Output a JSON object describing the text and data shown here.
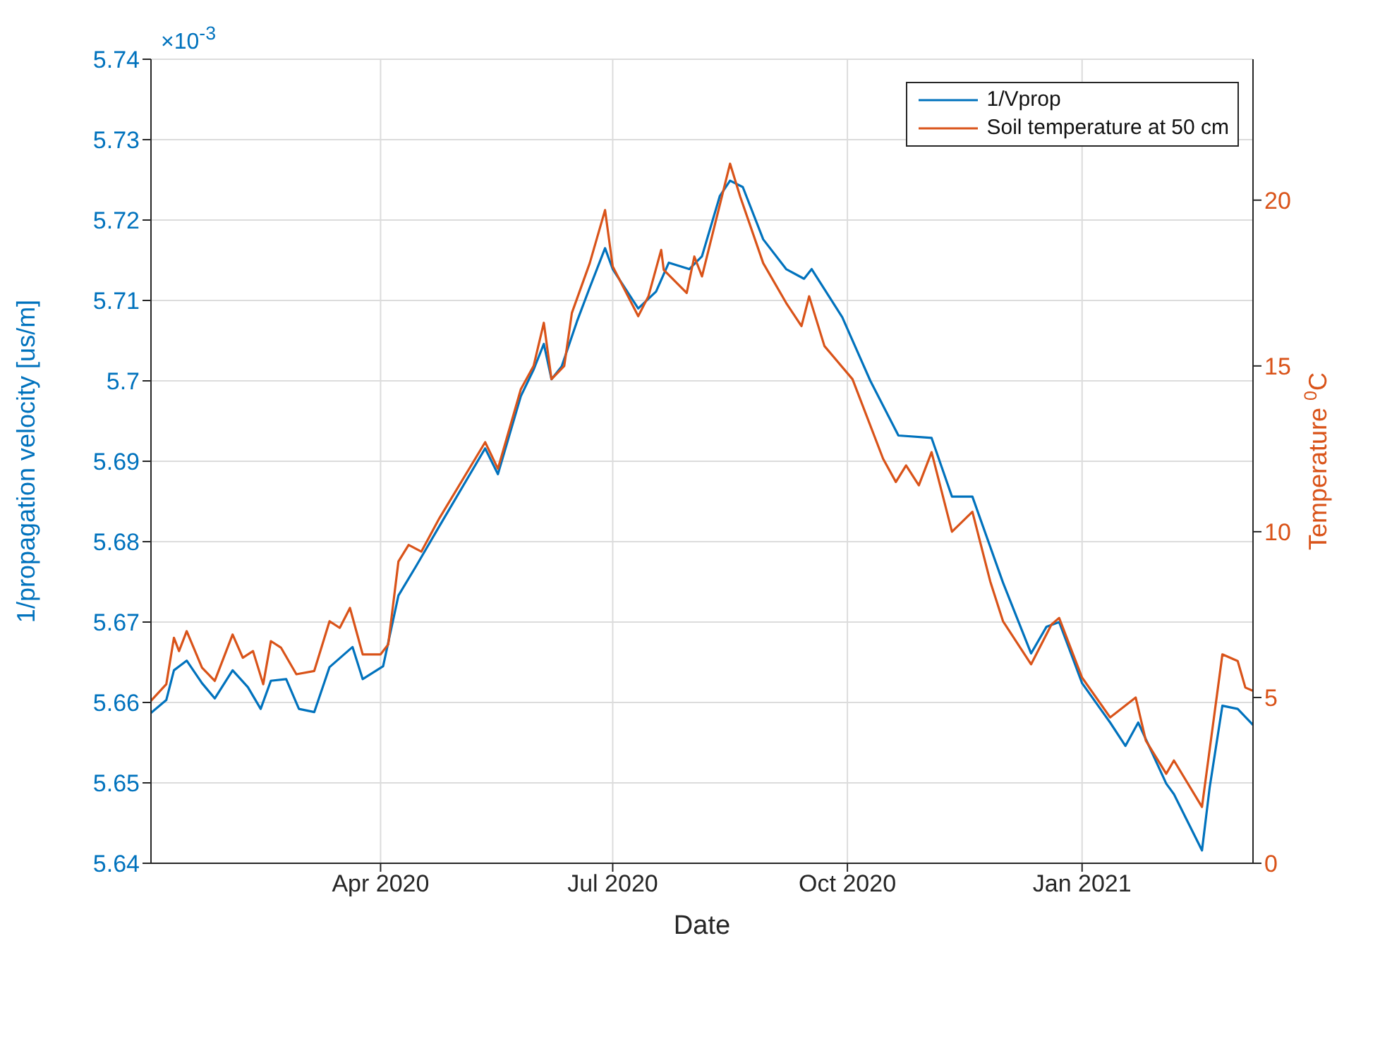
{
  "chart_data": {
    "type": "line",
    "xlabel": "Date",
    "ylabel": "1/propagation velocity [us/m]",
    "y2label": "Temperature $^{0}$C",
    "annotations": [
      "×10$^{-3}$"
    ],
    "xlim": [
      "2020-01-02",
      "2021-03-09"
    ],
    "xticks": [
      {
        "value": "2020-04-01",
        "label": "Apr 2020"
      },
      {
        "value": "2020-07-01",
        "label": "Jul 2020"
      },
      {
        "value": "2020-10-01",
        "label": "Oct 2020"
      },
      {
        "value": "2021-01-01",
        "label": "Jan 2021"
      }
    ],
    "ylim": [
      5.64,
      5.74
    ],
    "yticks": [
      5.64,
      5.65,
      5.66,
      5.67,
      5.68,
      5.69,
      5.7,
      5.71,
      5.72,
      5.73,
      5.74
    ],
    "y2lim": [
      0,
      24.25
    ],
    "y2ticks": [
      0,
      5,
      10,
      15,
      20
    ],
    "grid": true,
    "legend": "top right",
    "marker": "none",
    "line_style": "solid",
    "series": [
      {
        "name": "1/Vprop",
        "color": "#0072bd",
        "x": [
          "2020-01-02",
          "2020-01-08",
          "2020-01-11",
          "2020-01-16",
          "2020-01-22",
          "2020-01-27",
          "2020-02-03",
          "2020-02-09",
          "2020-02-14",
          "2020-02-18",
          "2020-02-24",
          "2020-02-29",
          "2020-03-06",
          "2020-03-12",
          "2020-03-21",
          "2020-03-25",
          "2020-04-02",
          "2020-04-08",
          "2020-04-15",
          "2020-04-24",
          "2020-05-12",
          "2020-05-17",
          "2020-05-26",
          "2020-05-31",
          "2020-06-04",
          "2020-06-07",
          "2020-06-11",
          "2020-06-17",
          "2020-06-22",
          "2020-06-28",
          "2020-07-01",
          "2020-07-11",
          "2020-07-18",
          "2020-07-23",
          "2020-07-31",
          "2020-08-05",
          "2020-08-12",
          "2020-08-16",
          "2020-08-21",
          "2020-08-29",
          "2020-09-07",
          "2020-09-14",
          "2020-09-17",
          "2020-09-29",
          "2020-10-10",
          "2020-10-21",
          "2020-11-03",
          "2020-11-11",
          "2020-11-19",
          "2020-12-01",
          "2020-12-12",
          "2020-12-18",
          "2020-12-23",
          "2021-01-01",
          "2021-01-12",
          "2021-01-18",
          "2021-01-23",
          "2021-02-03",
          "2021-02-06",
          "2021-02-17",
          "2021-02-20",
          "2021-02-25",
          "2021-03-03",
          "2021-03-09"
        ],
        "values": [
          5.6587,
          5.6603,
          5.664,
          5.6652,
          5.6624,
          5.6605,
          5.664,
          5.6619,
          5.6592,
          5.6627,
          5.6629,
          5.6592,
          5.6588,
          5.6644,
          5.6669,
          5.6629,
          5.6645,
          5.6733,
          5.677,
          5.6819,
          5.6916,
          5.6884,
          5.6981,
          5.7014,
          5.7046,
          5.7002,
          5.7018,
          5.7074,
          5.7116,
          5.7165,
          5.7139,
          5.709,
          5.7111,
          5.7147,
          5.7139,
          5.7155,
          5.723,
          5.7249,
          5.7241,
          5.7176,
          5.7139,
          5.7127,
          5.7139,
          5.7079,
          5.7,
          5.6932,
          5.6929,
          5.6856,
          5.6856,
          5.6749,
          5.6661,
          5.6694,
          5.67,
          5.6624,
          5.6575,
          5.6546,
          5.6575,
          5.6499,
          5.6486,
          5.6416,
          5.6494,
          5.6596,
          5.6592,
          5.6572
        ]
      },
      {
        "name": "Soil temperature at 50 cm",
        "color": "#d95319",
        "axis": "y2",
        "x": [
          "2020-01-02",
          "2020-01-08",
          "2020-01-11",
          "2020-01-13",
          "2020-01-16",
          "2020-01-22",
          "2020-01-27",
          "2020-02-03",
          "2020-02-07",
          "2020-02-11",
          "2020-02-15",
          "2020-02-18",
          "2020-02-22",
          "2020-02-28",
          "2020-03-06",
          "2020-03-12",
          "2020-03-16",
          "2020-03-20",
          "2020-03-25",
          "2020-04-01",
          "2020-04-04",
          "2020-04-08",
          "2020-04-12",
          "2020-04-17",
          "2020-04-24",
          "2020-05-12",
          "2020-05-17",
          "2020-05-26",
          "2020-05-31",
          "2020-06-04",
          "2020-06-07",
          "2020-06-12",
          "2020-06-15",
          "2020-06-22",
          "2020-06-28",
          "2020-07-01",
          "2020-07-11",
          "2020-07-15",
          "2020-07-20",
          "2020-07-21",
          "2020-07-30",
          "2020-08-02",
          "2020-08-05",
          "2020-08-16",
          "2020-08-20",
          "2020-08-29",
          "2020-09-07",
          "2020-09-13",
          "2020-09-16",
          "2020-09-22",
          "2020-10-03",
          "2020-10-15",
          "2020-10-20",
          "2020-10-24",
          "2020-10-29",
          "2020-11-03",
          "2020-11-11",
          "2020-11-19",
          "2020-11-26",
          "2020-12-01",
          "2020-12-12",
          "2020-12-20",
          "2020-12-23",
          "2021-01-01",
          "2021-01-12",
          "2021-01-22",
          "2021-01-26",
          "2021-02-03",
          "2021-02-06",
          "2021-02-17",
          "2021-02-25",
          "2021-03-03",
          "2021-03-06",
          "2021-03-09"
        ],
        "values": [
          4.9,
          5.4,
          6.8,
          6.4,
          7.0,
          5.9,
          5.5,
          6.9,
          6.2,
          6.4,
          5.4,
          6.7,
          6.5,
          5.7,
          5.8,
          7.3,
          7.1,
          7.7,
          6.3,
          6.3,
          6.6,
          9.1,
          9.6,
          9.4,
          10.4,
          12.7,
          11.9,
          14.3,
          15.0,
          16.3,
          14.6,
          15.0,
          16.6,
          18.1,
          19.7,
          18.0,
          16.5,
          17.1,
          18.5,
          17.9,
          17.2,
          18.3,
          17.7,
          21.1,
          20.1,
          18.1,
          16.9,
          16.2,
          17.1,
          15.6,
          14.6,
          12.2,
          11.5,
          12.0,
          11.4,
          12.4,
          10.0,
          10.6,
          8.5,
          7.3,
          6.0,
          7.2,
          7.4,
          5.6,
          4.4,
          5.0,
          3.7,
          2.7,
          3.1,
          1.7,
          6.3,
          6.1,
          5.3,
          5.2
        ]
      }
    ]
  }
}
